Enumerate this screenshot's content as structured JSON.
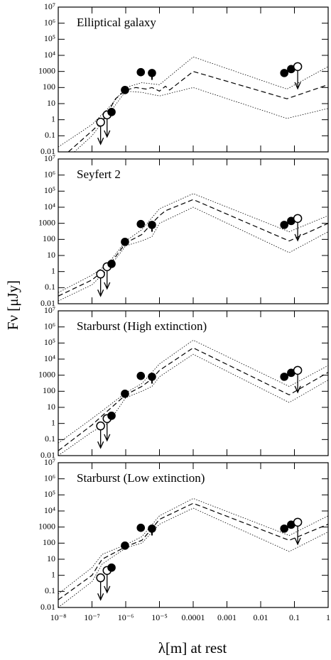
{
  "chart_data": {
    "type": "panels",
    "xlabel": "λ[m] at rest",
    "ylabel": "Fν [μJy]",
    "log": true,
    "xlim": [
      1e-08,
      1
    ],
    "xticks": [
      {
        "value": 1e-08,
        "label": "10⁻⁸"
      },
      {
        "value": 1e-07,
        "label": "10⁻⁷"
      },
      {
        "value": 1e-06,
        "label": "10⁻⁶"
      },
      {
        "value": 1e-05,
        "label": "10⁻⁵"
      },
      0.0001,
      0.001,
      0.01,
      0.1,
      1
    ],
    "ylim": [
      0.01,
      10000000
    ],
    "yticks": [
      0.01,
      0.1,
      1,
      10,
      100,
      1000,
      {
        "value": 10000,
        "label": "10⁴"
      },
      {
        "value": 100000,
        "label": "10⁵"
      },
      {
        "value": 1000000,
        "label": "10⁶"
      },
      {
        "value": 10000000,
        "label": "10⁷"
      }
    ],
    "points": {
      "x": [
        1.8e-07,
        2.8e-07,
        3.8e-07,
        9.5e-07,
        2.8e-06,
        6e-06,
        0.05,
        0.08,
        0.125
      ],
      "values": [
        0.7,
        2,
        3,
        70,
        900,
        800,
        800,
        1400,
        2000
      ],
      "errors": [
        null,
        null,
        null,
        null,
        null,
        500,
        null,
        null,
        null
      ],
      "upper_limit": [
        true,
        true,
        false,
        false,
        false,
        false,
        false,
        false,
        true
      ],
      "color": "#000000"
    },
    "panels": [
      {
        "type": "line",
        "title": "Elliptical galaxy",
        "series": [
          {
            "style": "dashed",
            "color": "#000000",
            "x": [
              2e-08,
              1e-07,
              2e-07,
              3e-07,
              5e-07,
              1e-06,
              2e-06,
              4e-06,
              6e-06,
              1e-05,
              1.5e-05,
              2e-05,
              0.0001,
              0.06,
              1
            ],
            "values": [
              0.01,
              0.2,
              0.8,
              3,
              20,
              70,
              100,
              80,
              100,
              60,
              120,
              70,
              1000,
              20,
              150
            ]
          },
          {
            "style": "dotted",
            "color": "#000000",
            "x": [
              1e-08,
              1e-07,
              3e-07,
              1e-06,
              3e-06,
              1e-05,
              0.0001,
              0.06,
              1
            ],
            "values": [
              0.02,
              0.5,
              5,
              100,
              200,
              150,
              8000,
              80,
              2000
            ]
          },
          {
            "style": "dotted",
            "color": "#000000",
            "x": [
              3e-08,
              1e-07,
              3e-07,
              1e-06,
              3e-06,
              1e-05,
              0.0001,
              0.06,
              1
            ],
            "values": [
              0.01,
              0.1,
              2,
              60,
              50,
              30,
              100,
              1.2,
              5
            ]
          }
        ]
      },
      {
        "type": "line",
        "title": "Seyfert 2",
        "series": [
          {
            "style": "dashed",
            "color": "#000000",
            "x": [
              1e-08,
              1e-07,
              3e-07,
              1e-06,
              3e-06,
              6e-06,
              1e-05,
              1.5e-05,
              0.0001,
              0.07,
              1
            ],
            "values": [
              0.03,
              0.3,
              2,
              60,
              200,
              1000,
              3000,
              6000,
              30000,
              80,
              1000
            ]
          },
          {
            "style": "dotted",
            "color": "#000000",
            "x": [
              1e-08,
              1e-07,
              3e-07,
              1e-06,
              3e-06,
              1e-05,
              0.0001,
              0.07,
              1
            ],
            "values": [
              0.05,
              0.6,
              3,
              80,
              400,
              8000,
              70000,
              300,
              3000
            ]
          },
          {
            "style": "dotted",
            "color": "#000000",
            "x": [
              1e-08,
              1e-07,
              3e-07,
              1e-06,
              3e-06,
              6e-06,
              1e-05,
              0.0001,
              0.07,
              1
            ],
            "values": [
              0.015,
              0.15,
              1.5,
              40,
              80,
              150,
              1000,
              10000,
              15,
              300
            ]
          }
        ]
      },
      {
        "type": "line",
        "title": "Starburst (High extinction)",
        "series": [
          {
            "style": "dashed",
            "color": "#000000",
            "x": [
              1e-08,
              1e-07,
              2e-07,
              1e-06,
              3e-06,
              6e-06,
              1e-05,
              0.0001,
              0.07,
              1
            ],
            "values": [
              0.02,
              0.8,
              3,
              60,
              200,
              600,
              2000,
              50000,
              60,
              1500
            ]
          },
          {
            "style": "dotted",
            "color": "#000000",
            "x": [
              1e-08,
              1e-07,
              2e-07,
              1e-06,
              3e-06,
              1e-05,
              0.0001,
              0.07,
              1
            ],
            "values": [
              0.06,
              2,
              6,
              80,
              300,
              5000,
              150000,
              200,
              4000
            ]
          },
          {
            "style": "dotted",
            "color": "#000000",
            "x": [
              1e-08,
              1e-07,
              3e-07,
              1e-06,
              3e-06,
              6e-06,
              1e-05,
              0.0001,
              0.07,
              1
            ],
            "values": [
              0.01,
              0.3,
              1,
              40,
              100,
              200,
              800,
              20000,
              20,
              500
            ]
          }
        ]
      },
      {
        "type": "line",
        "title": "Starburst (Low extinction)",
        "series": [
          {
            "style": "dashed",
            "color": "#000000",
            "x": [
              1e-08,
              1e-07,
              2e-07,
              1e-06,
              3e-06,
              6e-06,
              1e-05,
              0.0001,
              0.07,
              1
            ],
            "values": [
              0.03,
              1,
              10,
              60,
              150,
              800,
              3000,
              30000,
              150,
              1500
            ]
          },
          {
            "style": "dotted",
            "color": "#000000",
            "x": [
              1e-08,
              1e-07,
              2e-07,
              1e-06,
              3e-06,
              1e-05,
              0.0001,
              0.07,
              1
            ],
            "values": [
              0.07,
              3,
              20,
              80,
              250,
              5000,
              60000,
              300,
              5000
            ]
          },
          {
            "style": "dotted",
            "color": "#000000",
            "x": [
              1e-08,
              1e-07,
              2e-07,
              1e-06,
              3e-06,
              1e-05,
              0.0001,
              0.07,
              1
            ],
            "values": [
              0.01,
              0.4,
              5,
              50,
              100,
              1500,
              15000,
              30,
              500
            ]
          }
        ]
      }
    ]
  }
}
